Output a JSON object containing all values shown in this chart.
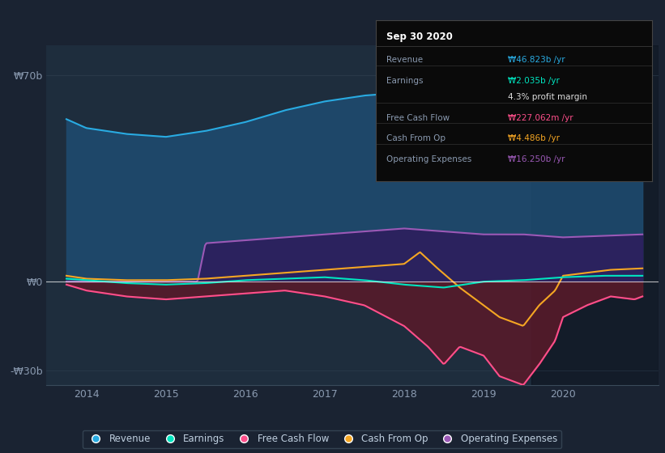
{
  "bg_color": "#1a2332",
  "plot_bg_color": "#1e2d3d",
  "ylabel_top": "₩70b",
  "ylabel_mid": "₩0",
  "ylabel_bot": "-₩30b",
  "ylim": [
    -35000000000,
    80000000000
  ],
  "xlim_start": 2013.5,
  "xlim_end": 2021.2,
  "highlight_start": 2019.6,
  "highlight_end": 2021.2,
  "legend_items": [
    "Revenue",
    "Earnings",
    "Free Cash Flow",
    "Cash From Op",
    "Operating Expenses"
  ],
  "legend_colors": [
    "#29abe2",
    "#00e5c0",
    "#ff4f8b",
    "#f5a623",
    "#9b59b6"
  ],
  "tooltip": {
    "title": "Sep 30 2020",
    "rows": [
      {
        "label": "Revenue",
        "value": "₩46.823b /yr",
        "value_color": "#29abe2"
      },
      {
        "label": "Earnings",
        "value": "₩2.035b /yr",
        "value_color": "#00e5c0"
      },
      {
        "label": "",
        "value": "4.3% profit margin",
        "value_color": "#dddddd"
      },
      {
        "label": "Free Cash Flow",
        "value": "₩227.062m /yr",
        "value_color": "#ff4f8b"
      },
      {
        "label": "Cash From Op",
        "value": "₩4.486b /yr",
        "value_color": "#f5a623"
      },
      {
        "label": "Operating Expenses",
        "value": "₩16.250b /yr",
        "value_color": "#9b59b6"
      }
    ]
  },
  "revenue_color": "#29abe2",
  "revenue_fill": "#1e4a6e",
  "earnings_color": "#00e5c0",
  "fcf_color": "#ff4f8b",
  "fcf_fill": "#5a1a2a",
  "cashop_color": "#f5a623",
  "opex_color": "#9b59b6",
  "opex_fill": "#2d1f5e",
  "zero_line_color": "#ffffff"
}
